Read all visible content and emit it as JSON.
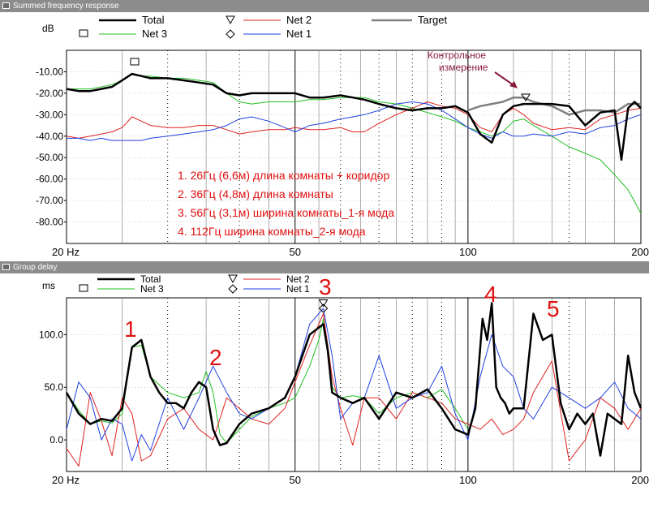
{
  "windows": [
    {
      "title": "Summed frequency response",
      "y_unit": "dB",
      "legend": [
        "Total",
        "Net 2",
        "Target",
        "Net 3",
        "Net 1"
      ],
      "annotation": "Контрольное измерение",
      "notes": [
        "1. 26Гц (6,6м) длина комнаты + коридор",
        "2. 36Гц (4,8м)  длина комнаты",
        "3. 56Гц (3,1м) ширина комнаты_1-я мода",
        "4. 112Гц  ширина комнаты_2-я мода"
      ]
    },
    {
      "title": "Group delay",
      "y_unit": "ms",
      "legend": [
        "Total",
        "Net 2",
        "Net 3",
        "Net 1"
      ],
      "markers": [
        "1",
        "2",
        "3",
        "4",
        "5"
      ]
    }
  ],
  "colors": {
    "total": "#000000",
    "net2": "#e02020",
    "net3": "#20c020",
    "net1": "#2040e0",
    "target": "#808080",
    "note": "#e01010",
    "annotation": "#8b1a3a"
  },
  "chart_data": [
    {
      "type": "line",
      "title": "Summed frequency response",
      "ylabel": "dB",
      "xscale": "log",
      "xlim": [
        20,
        200
      ],
      "ylim": [
        -90,
        0
      ],
      "xticks": [
        {
          "v": 20,
          "label": "20 Hz"
        },
        {
          "v": 50,
          "label": "50"
        },
        {
          "v": 100,
          "label": "100"
        },
        {
          "v": 200,
          "label": "200"
        }
      ],
      "yticks": [
        {
          "v": -10,
          "label": "-10.00"
        },
        {
          "v": -20,
          "label": "-20.00"
        },
        {
          "v": -30,
          "label": "-30.00"
        },
        {
          "v": -40,
          "label": "-40.00"
        },
        {
          "v": -50,
          "label": "-50.00"
        },
        {
          "v": -60,
          "label": "-60.00"
        },
        {
          "v": -70,
          "label": "-70.00"
        },
        {
          "v": -80,
          "label": "-80.00"
        }
      ],
      "series": [
        {
          "name": "Target",
          "key": "target",
          "x": [
            100,
            105,
            110,
            115,
            120,
            125,
            130,
            140,
            150,
            160,
            170,
            180,
            190,
            200
          ],
          "y": [
            -28,
            -26,
            -25,
            -24,
            -22,
            -22,
            -24,
            -26,
            -30,
            -28,
            -28,
            -29,
            -25,
            -25
          ]
        },
        {
          "name": "Net 3",
          "key": "net3",
          "x": [
            20,
            21,
            22,
            23,
            24,
            25,
            26,
            27,
            28,
            30,
            32,
            34,
            36,
            38,
            40,
            42,
            45,
            48,
            50,
            53,
            56,
            60,
            63,
            66,
            70,
            75,
            80,
            85,
            90,
            95,
            100,
            105,
            110,
            115,
            120,
            125,
            130,
            140,
            150,
            160,
            170,
            180,
            190,
            200
          ],
          "y": [
            -18,
            -18,
            -18,
            -17,
            -16,
            -14,
            -11,
            -12,
            -12,
            -13,
            -13,
            -14,
            -15,
            -20,
            -24,
            -25,
            -24,
            -24,
            -24,
            -23,
            -23,
            -22,
            -22,
            -22,
            -24,
            -25,
            -27,
            -29,
            -31,
            -33,
            -36,
            -38,
            -40,
            -38,
            -33,
            -32,
            -35,
            -40,
            -45,
            -48,
            -51,
            -58,
            -65,
            -76
          ]
        },
        {
          "name": "Net 2",
          "key": "net2",
          "x": [
            20,
            21,
            22,
            23,
            24,
            25,
            26,
            27,
            28,
            30,
            32,
            34,
            36,
            38,
            40,
            42,
            45,
            48,
            50,
            53,
            56,
            60,
            63,
            66,
            70,
            75,
            80,
            85,
            90,
            95,
            100,
            105,
            110,
            115,
            120,
            125,
            130,
            140,
            150,
            160,
            170,
            180,
            190,
            200
          ],
          "y": [
            -40,
            -41,
            -40,
            -39,
            -38,
            -36,
            -31,
            -33,
            -35,
            -36,
            -36,
            -35,
            -35,
            -37,
            -39,
            -38,
            -37,
            -37,
            -36,
            -37,
            -37,
            -36,
            -38,
            -38,
            -34,
            -30,
            -27,
            -24,
            -26,
            -27,
            -30,
            -36,
            -38,
            -30,
            -27,
            -30,
            -34,
            -37,
            -36,
            -37,
            -32,
            -30,
            -28,
            -27
          ]
        },
        {
          "name": "Net 1",
          "key": "net1",
          "x": [
            20,
            21,
            22,
            23,
            24,
            25,
            26,
            27,
            28,
            30,
            32,
            34,
            36,
            38,
            40,
            42,
            45,
            48,
            50,
            53,
            56,
            60,
            63,
            66,
            70,
            75,
            80,
            85,
            90,
            95,
            100,
            105,
            110,
            115,
            120,
            125,
            130,
            140,
            150,
            160,
            170,
            180,
            190,
            200
          ],
          "y": [
            -41,
            -41,
            -42,
            -41,
            -42,
            -42,
            -42,
            -42,
            -41,
            -40,
            -39,
            -38,
            -37,
            -35,
            -32,
            -31,
            -33,
            -36,
            -38,
            -35,
            -34,
            -32,
            -31,
            -30,
            -28,
            -25,
            -24,
            -25,
            -28,
            -32,
            -36,
            -39,
            -41,
            -38,
            -40,
            -40,
            -39,
            -40,
            -38,
            -39,
            -36,
            -35,
            -32,
            -30
          ]
        },
        {
          "name": "Total",
          "key": "total",
          "x": [
            20,
            21,
            22,
            23,
            24,
            25,
            26,
            27,
            28,
            30,
            32,
            34,
            36,
            38,
            40,
            42,
            45,
            48,
            50,
            53,
            56,
            60,
            63,
            66,
            70,
            75,
            80,
            85,
            90,
            95,
            100,
            105,
            110,
            115,
            120,
            125,
            130,
            140,
            150,
            160,
            170,
            180,
            185,
            190,
            195,
            200
          ],
          "y": [
            -18,
            -19,
            -19,
            -18,
            -17,
            -14,
            -11,
            -12,
            -13,
            -13,
            -14,
            -15,
            -16,
            -20,
            -21,
            -20,
            -20,
            -20,
            -20,
            -22,
            -22,
            -21,
            -22,
            -23,
            -25,
            -27,
            -28,
            -27,
            -27,
            -26,
            -29,
            -39,
            -43,
            -30,
            -26,
            -25,
            -25,
            -25,
            -26,
            -35,
            -29,
            -28,
            -51,
            -27,
            -24,
            -27
          ]
        }
      ]
    },
    {
      "type": "line",
      "title": "Group delay",
      "ylabel": "ms",
      "xscale": "log",
      "xlim": [
        20,
        200
      ],
      "ylim": [
        -30,
        135
      ],
      "xticks": [
        {
          "v": 20,
          "label": "20 Hz"
        },
        {
          "v": 50,
          "label": "50"
        },
        {
          "v": 100,
          "label": "100"
        },
        {
          "v": 200,
          "label": "200"
        }
      ],
      "yticks": [
        {
          "v": 100,
          "label": "100.0"
        },
        {
          "v": 50,
          "label": "50.0"
        },
        {
          "v": 0,
          "label": "0.0"
        }
      ],
      "series": [
        {
          "name": "Net 3",
          "key": "net3",
          "x": [
            20,
            21,
            22,
            23,
            24,
            25,
            26,
            27,
            28,
            30,
            32,
            34,
            35,
            36,
            37,
            38,
            40,
            42,
            45,
            48,
            50,
            53,
            55,
            56,
            57,
            58,
            60,
            63,
            66,
            70,
            75,
            80,
            85,
            90,
            95,
            100
          ],
          "y": [
            45,
            28,
            15,
            18,
            16,
            25,
            88,
            90,
            60,
            45,
            40,
            45,
            65,
            45,
            5,
            -3,
            10,
            22,
            30,
            35,
            40,
            70,
            95,
            115,
            90,
            50,
            40,
            42,
            40,
            25,
            40,
            45,
            40,
            48,
            30,
            10
          ]
        },
        {
          "name": "Net 2",
          "key": "net2",
          "x": [
            20,
            21,
            22,
            23,
            24,
            25,
            26,
            27,
            28,
            30,
            32,
            34,
            36,
            38,
            40,
            42,
            45,
            48,
            50,
            53,
            56,
            58,
            60,
            63,
            66,
            70,
            75,
            80,
            85,
            90,
            95,
            100,
            105,
            110,
            115,
            120,
            125,
            130,
            140,
            150,
            160,
            170,
            180,
            190,
            200
          ],
          "y": [
            -8,
            -25,
            45,
            18,
            -15,
            40,
            25,
            -20,
            -15,
            20,
            30,
            10,
            0,
            40,
            30,
            20,
            15,
            30,
            55,
            90,
            120,
            60,
            30,
            -5,
            40,
            40,
            20,
            45,
            40,
            35,
            20,
            15,
            10,
            20,
            5,
            10,
            20,
            45,
            75,
            -20,
            0,
            40,
            30,
            10,
            30
          ]
        },
        {
          "name": "Net 1",
          "key": "net1",
          "x": [
            20,
            21,
            22,
            23,
            24,
            25,
            26,
            27,
            28,
            30,
            32,
            34,
            36,
            38,
            40,
            42,
            45,
            48,
            50,
            53,
            56,
            58,
            60,
            63,
            66,
            70,
            75,
            80,
            85,
            90,
            95,
            100,
            105,
            110,
            115,
            120,
            125,
            130,
            140,
            150,
            160,
            170,
            180,
            190,
            200
          ],
          "y": [
            10,
            55,
            40,
            0,
            20,
            15,
            -20,
            5,
            -10,
            40,
            10,
            40,
            70,
            45,
            25,
            20,
            30,
            40,
            60,
            110,
            125,
            80,
            20,
            35,
            40,
            80,
            30,
            40,
            45,
            70,
            25,
            0,
            60,
            100,
            70,
            60,
            30,
            20,
            50,
            40,
            30,
            40,
            55,
            30,
            20
          ]
        },
        {
          "name": "Total",
          "key": "total",
          "x": [
            20,
            21,
            22,
            23,
            24,
            25,
            26,
            27,
            28,
            29,
            30,
            31,
            32,
            33,
            34,
            35,
            36,
            37,
            38,
            40,
            42,
            45,
            48,
            50,
            53,
            56,
            57,
            58,
            60,
            63,
            66,
            70,
            75,
            80,
            85,
            90,
            95,
            100,
            103,
            106,
            108,
            110,
            112,
            114,
            116,
            118,
            120,
            125,
            130,
            135,
            140,
            145,
            150,
            155,
            160,
            165,
            170,
            175,
            180,
            185,
            190,
            195,
            200
          ],
          "y": [
            45,
            25,
            15,
            20,
            18,
            30,
            88,
            95,
            60,
            45,
            35,
            35,
            30,
            45,
            55,
            50,
            10,
            -5,
            -3,
            15,
            25,
            30,
            40,
            60,
            100,
            110,
            85,
            45,
            40,
            35,
            40,
            20,
            45,
            40,
            48,
            30,
            10,
            5,
            30,
            115,
            95,
            130,
            50,
            40,
            35,
            25,
            30,
            30,
            120,
            95,
            100,
            35,
            10,
            25,
            15,
            25,
            -15,
            25,
            20,
            15,
            80,
            45,
            30
          ]
        }
      ],
      "markers": [
        {
          "name": "Net 2",
          "shape": "triangle",
          "x": 56,
          "y": 130
        },
        {
          "name": "Net 1",
          "shape": "diamond",
          "x": 56,
          "y": 125
        }
      ]
    }
  ]
}
